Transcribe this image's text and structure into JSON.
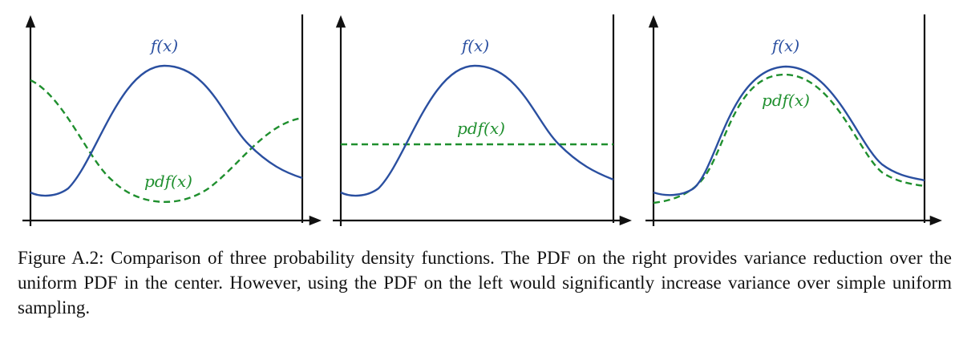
{
  "figure": {
    "panels": [
      {
        "curve_label": "f(x)",
        "pdf_label": "pdf(x)"
      },
      {
        "curve_label": "f(x)",
        "pdf_label": "pdf(x)"
      },
      {
        "curve_label": "f(x)",
        "pdf_label": "pdf(x)"
      }
    ],
    "caption": "Figure A.2: Comparison of three probability density functions. The PDF on the right provides variance reduction over the uniform PDF in the center. However, using the PDF on the left would significantly increase variance over simple uniform sampling."
  }
}
